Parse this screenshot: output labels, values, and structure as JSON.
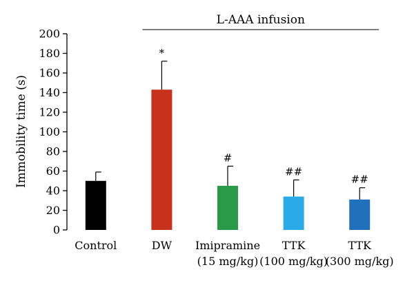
{
  "chart_data": {
    "type": "bar",
    "categories": [
      [
        "Control"
      ],
      [
        "DW"
      ],
      [
        "Imipramine",
        "(15 mg/kg)"
      ],
      [
        "TTK",
        "(100 mg/kg)"
      ],
      [
        "TTK",
        "(300 mg/kg)"
      ]
    ],
    "values": [
      50,
      143,
      45,
      34,
      31
    ],
    "errors": [
      9,
      29,
      20,
      17,
      12
    ],
    "colors": [
      "#000000",
      "#c8321c",
      "#2a9a48",
      "#2aaae6",
      "#2070bc"
    ],
    "annotations": [
      "",
      "*",
      "#",
      "##",
      "##"
    ],
    "ylabel": "Immobility time (s)",
    "yticks": [
      0,
      20,
      40,
      60,
      80,
      100,
      120,
      140,
      160,
      180,
      200
    ],
    "ylim": [
      0,
      200
    ],
    "group_label": "L-AAA infusion",
    "group_span": [
      1,
      4
    ]
  }
}
